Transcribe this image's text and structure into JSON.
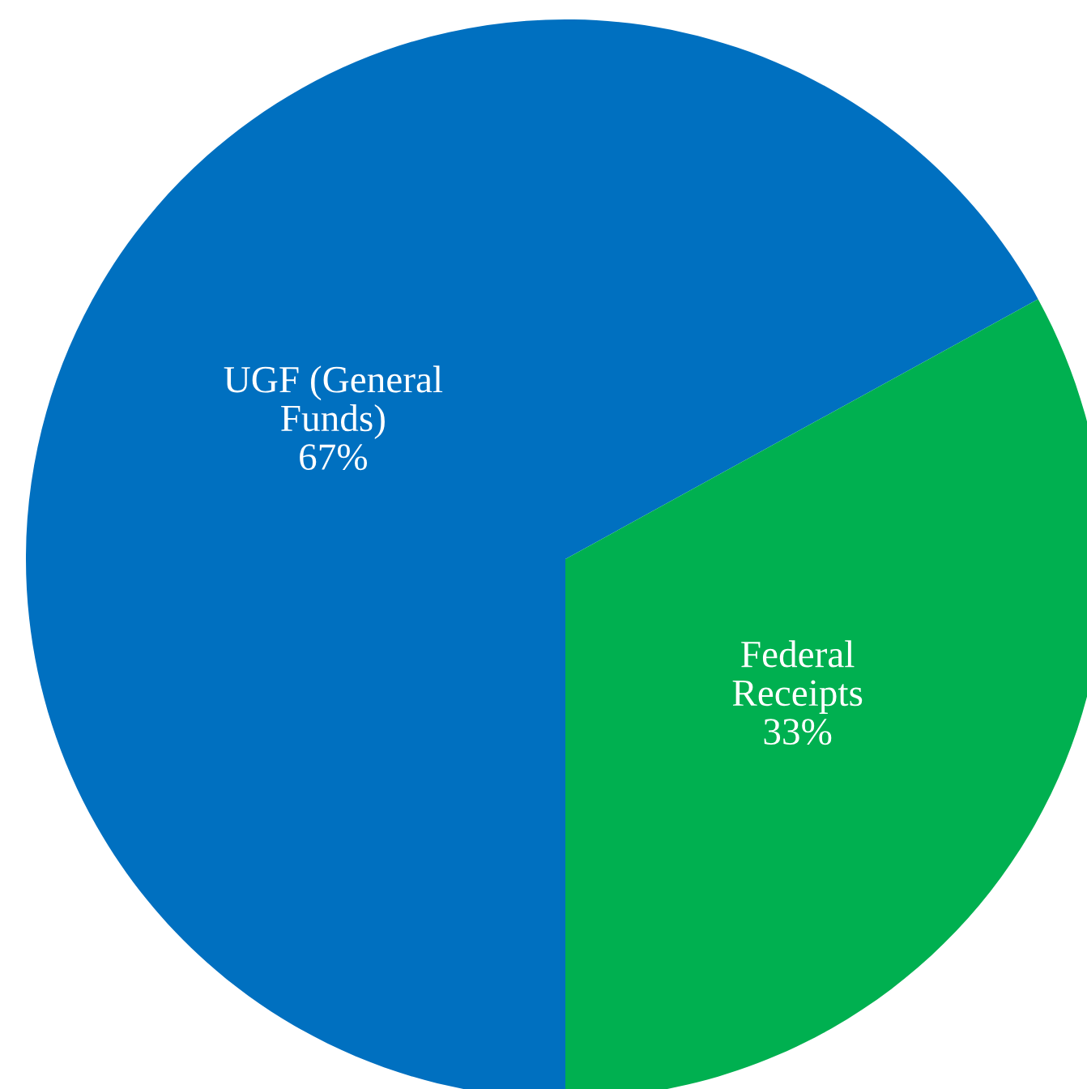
{
  "chart_data": {
    "type": "pie",
    "categories": [
      "UGF (General\nFunds)",
      "Federal\nReceipts"
    ],
    "values": [
      67,
      33
    ],
    "colors": [
      "#0070c0",
      "#00b050"
    ],
    "value_labels": [
      "67%",
      "33%"
    ],
    "legend": false
  }
}
